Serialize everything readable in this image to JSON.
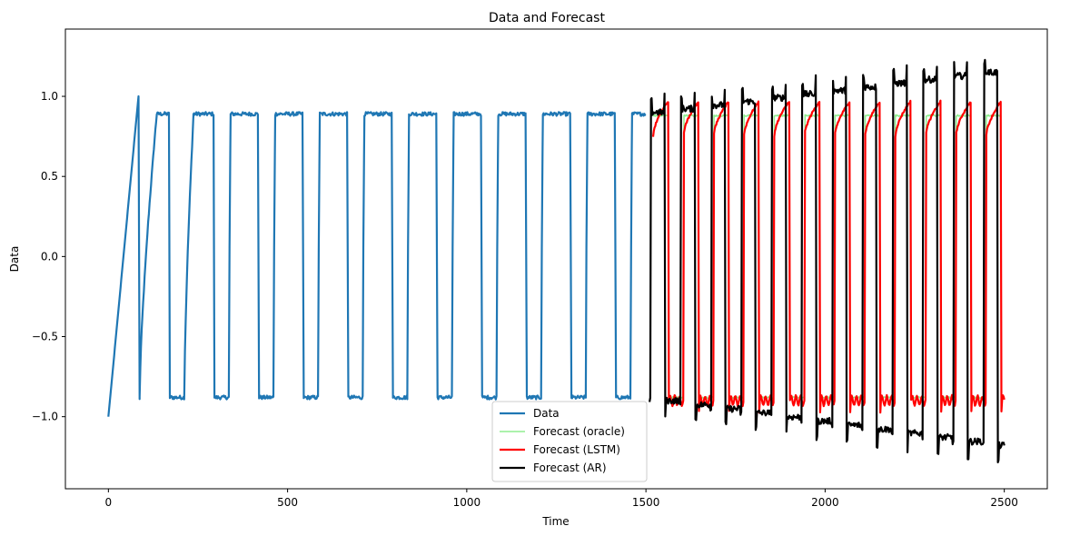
{
  "chart_data": {
    "type": "line",
    "title": "Data and Forecast",
    "xlabel": "Time",
    "ylabel": "Data",
    "xlim": [
      -120,
      2620
    ],
    "ylim": [
      -1.45,
      1.42
    ],
    "xticks": [
      0,
      500,
      1000,
      1500,
      2000,
      2500
    ],
    "xtick_labels": [
      "0",
      "500",
      "1000",
      "1500",
      "2000",
      "2500"
    ],
    "yticks": [
      -1.0,
      -0.5,
      0.0,
      0.5,
      1.0
    ],
    "ytick_labels": [
      "−1.0",
      "−0.5",
      "0.0",
      "0.5",
      "1.0"
    ],
    "grid": false,
    "legend_position": "lower-center",
    "series": [
      {
        "name": "Data",
        "color": "#1f77b4",
        "x_range": [
          0,
          1500
        ]
      },
      {
        "name": "Forecast (oracle)",
        "color": "#90ee90",
        "x_range": [
          1500,
          2500
        ]
      },
      {
        "name": "Forecast (LSTM)",
        "color": "#ff0000",
        "x_range": [
          1500,
          2500
        ]
      },
      {
        "name": "Forecast (AR)",
        "color": "#000000",
        "x_range": [
          1500,
          2500
        ]
      }
    ],
    "data_low_level": -0.88,
    "data_high_level": 0.89,
    "period": 84.5
  }
}
